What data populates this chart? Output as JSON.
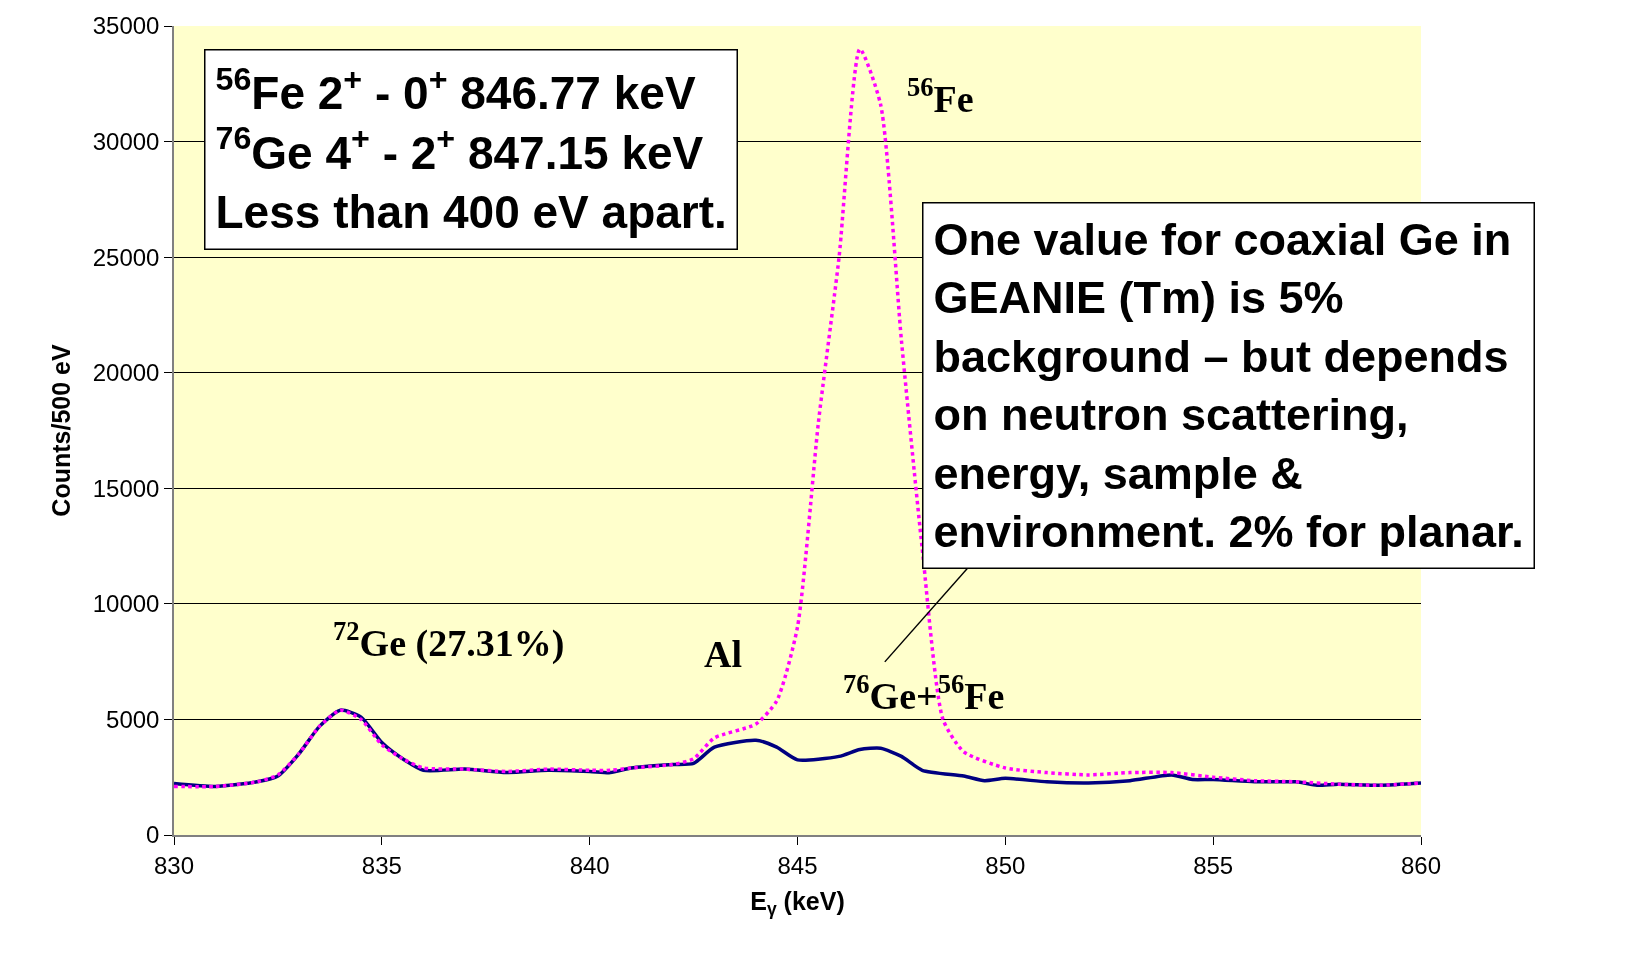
{
  "chart_data": {
    "type": "line",
    "xlabel": "E$_{γ}$ (keV)",
    "ylabel": "Counts/500 eV",
    "xlim": [
      830,
      860
    ],
    "xticks": [
      830,
      835,
      840,
      845,
      850,
      855,
      860
    ],
    "ylim": [
      0,
      35000
    ],
    "yticks": [
      0,
      5000,
      10000,
      15000,
      20000,
      25000,
      30000,
      35000
    ],
    "grid": "y",
    "legend": false,
    "series": [
      {
        "color": "#ff00ff",
        "line_style": "dotted",
        "x": [
          830,
          831,
          832,
          832.5,
          833,
          833.5,
          834,
          834.5,
          835,
          835.5,
          836,
          837,
          838,
          839,
          840,
          840.5,
          841,
          842,
          842.5,
          843,
          844,
          844.5,
          845,
          845.5,
          846,
          846.5,
          847,
          847.5,
          848,
          848.5,
          849,
          850,
          851,
          852,
          853,
          854,
          855,
          856,
          857,
          858,
          859,
          860
        ],
        "values": [
          2100,
          2100,
          2300,
          2600,
          3500,
          4700,
          5400,
          5000,
          3900,
          3300,
          2900,
          2850,
          2750,
          2850,
          2800,
          2800,
          2900,
          3050,
          3300,
          4200,
          4800,
          5800,
          9000,
          17800,
          25000,
          34000,
          31600,
          21400,
          12400,
          5000,
          3600,
          2900,
          2700,
          2600,
          2700,
          2700,
          2500,
          2350,
          2300,
          2200,
          2150,
          2250
        ]
      },
      {
        "color": "#000080",
        "line_style": "solid",
        "x": [
          830,
          831,
          832,
          832.5,
          833,
          833.5,
          834,
          834.5,
          835,
          835.5,
          836,
          837,
          838,
          839,
          840,
          840.5,
          841,
          842,
          842.5,
          843,
          844,
          844.5,
          845,
          846,
          846.5,
          847,
          847.5,
          848,
          849,
          849.5,
          850,
          851,
          852,
          853,
          854,
          854.5,
          855,
          856,
          857,
          857.5,
          858,
          859,
          860
        ],
        "values": [
          2230,
          2100,
          2300,
          2550,
          3500,
          4700,
          5400,
          5100,
          4000,
          3300,
          2800,
          2850,
          2700,
          2800,
          2750,
          2700,
          2900,
          3050,
          3100,
          3800,
          4100,
          3800,
          3250,
          3400,
          3700,
          3750,
          3400,
          2800,
          2550,
          2350,
          2450,
          2300,
          2250,
          2350,
          2600,
          2400,
          2400,
          2300,
          2300,
          2150,
          2200,
          2150,
          2250
        ]
      }
    ],
    "annotations": [
      "$^{56}$Fe 2$^{+}$ - 0$^{+}$ 846.77 keV\n$^{76}$Ge 4$^{+}$ - 2$^{+}$ 847.15 keV\nLess than 400 eV apart.",
      "One value for coaxial Ge in\nGEANIE (Tm) is 5%\nbackground – but depends\non neutron scattering,\nenergy, sample &\nenvironment. 2% for planar.",
      "$^{72}$Ge (27.31%)",
      "Al",
      "$^{56}$Fe",
      "$^{76}$Ge+$^{56}$Fe"
    ]
  }
}
